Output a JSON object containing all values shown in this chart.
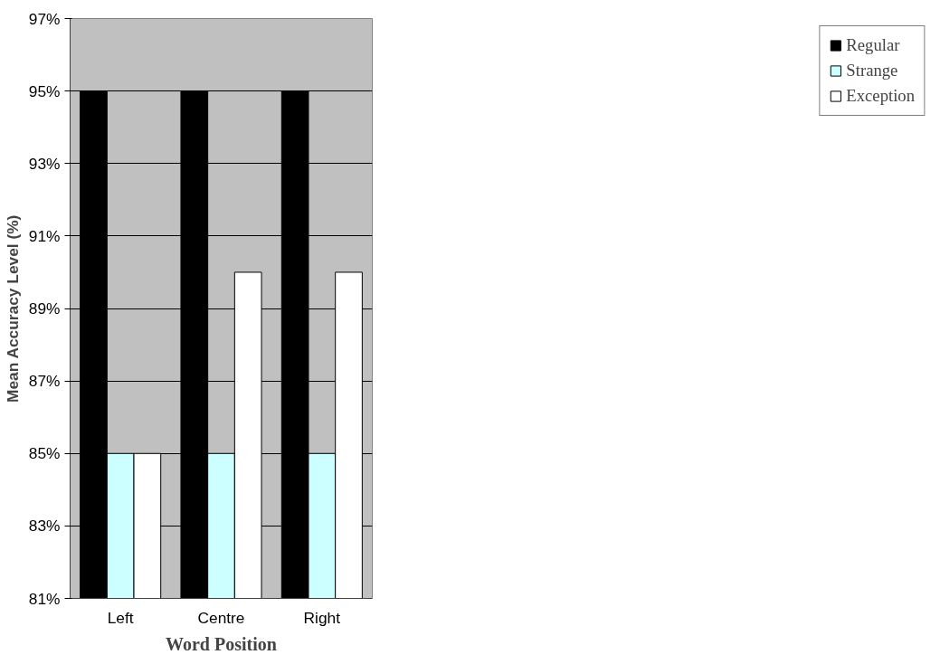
{
  "chart_data": {
    "type": "bar",
    "xlabel": "Word Position",
    "ylabel": "Mean Accuracy Level (%)",
    "categories": [
      "Left",
      "Centre",
      "Right"
    ],
    "series": [
      {
        "name": "Regular",
        "color": "#000000",
        "values": [
          95,
          95,
          95
        ]
      },
      {
        "name": "Strange",
        "color": "#ccffff",
        "values": [
          85,
          85,
          85
        ]
      },
      {
        "name": "Exception",
        "color": "#ffffff",
        "values": [
          85,
          90,
          90
        ]
      }
    ],
    "ylim": [
      81,
      97
    ],
    "yticks": [
      {
        "value": 81,
        "label": "81%"
      },
      {
        "value": 83,
        "label": "83%"
      },
      {
        "value": 85,
        "label": "85%"
      },
      {
        "value": 87,
        "label": "87%"
      },
      {
        "value": 89,
        "label": "89%"
      },
      {
        "value": 91,
        "label": "91%"
      },
      {
        "value": 93,
        "label": "93%"
      },
      {
        "value": 95,
        "label": "95%"
      },
      {
        "value": 97,
        "label": "97%"
      }
    ],
    "grid": "y",
    "legend": "right"
  }
}
